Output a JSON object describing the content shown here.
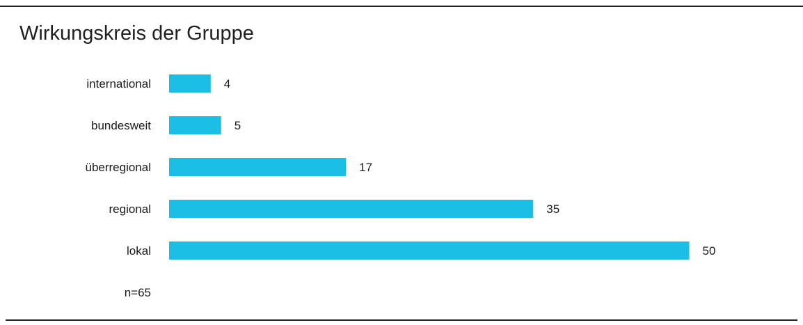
{
  "chart_data": {
    "type": "bar",
    "orientation": "horizontal",
    "title": "Wirkungskreis der Gruppe",
    "categories": [
      "international",
      "bundesweit",
      "überregional",
      "regional",
      "lokal"
    ],
    "values": [
      4,
      5,
      17,
      35,
      50
    ],
    "note": "n=65",
    "bar_color": "#1bbfe6",
    "grid": false,
    "legend": "none"
  }
}
